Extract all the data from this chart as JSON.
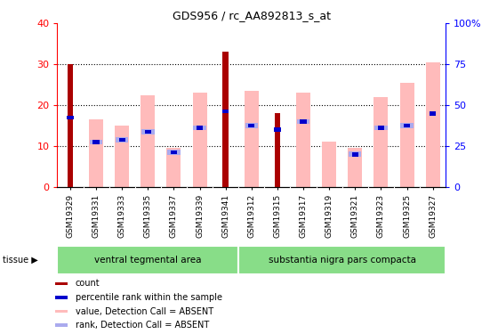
{
  "title": "GDS956 / rc_AA892813_s_at",
  "categories": [
    "GSM19329",
    "GSM19331",
    "GSM19333",
    "GSM19335",
    "GSM19337",
    "GSM19339",
    "GSM19341",
    "GSM19312",
    "GSM19315",
    "GSM19317",
    "GSM19319",
    "GSM19321",
    "GSM19323",
    "GSM19325",
    "GSM19327"
  ],
  "group1_label": "ventral tegmental area",
  "group2_label": "substantia nigra pars compacta",
  "group1_count": 7,
  "group2_count": 8,
  "red_values": [
    30.0,
    0.0,
    0.0,
    0.0,
    0.0,
    0.0,
    33.0,
    0.0,
    18.0,
    0.0,
    0.0,
    0.0,
    0.0,
    0.0,
    0.0
  ],
  "pink_values": [
    0.0,
    16.5,
    15.0,
    22.5,
    9.5,
    23.0,
    0.0,
    23.5,
    0.0,
    23.0,
    11.0,
    9.5,
    22.0,
    25.5,
    30.5
  ],
  "blue_values": [
    17.0,
    11.0,
    11.5,
    13.5,
    8.5,
    14.5,
    18.5,
    15.0,
    14.0,
    16.0,
    0.0,
    8.0,
    14.5,
    15.0,
    18.0
  ],
  "lightblue_values": [
    0.0,
    11.0,
    11.5,
    13.5,
    8.5,
    14.5,
    0.0,
    15.0,
    0.0,
    16.0,
    0.0,
    8.0,
    14.5,
    15.0,
    0.0
  ],
  "ylim": [
    0,
    40
  ],
  "yticks_left": [
    0,
    10,
    20,
    30,
    40
  ],
  "yticks_right": [
    0,
    25,
    50,
    75,
    100
  ],
  "red_color": "#aa0000",
  "pink_color": "#ffbbbb",
  "blue_color": "#0000cc",
  "lightblue_color": "#aaaaee",
  "group_bg_color": "#88dd88",
  "ticklabel_bg_color": "#cccccc",
  "legend_items": [
    "count",
    "percentile rank within the sample",
    "value, Detection Call = ABSENT",
    "rank, Detection Call = ABSENT"
  ],
  "legend_colors": [
    "#aa0000",
    "#0000cc",
    "#ffbbbb",
    "#aaaaee"
  ]
}
